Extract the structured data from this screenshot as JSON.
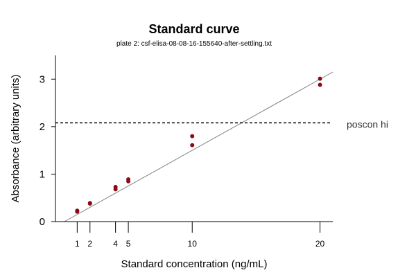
{
  "chart_data": {
    "type": "scatter",
    "title": "Standard curve",
    "subtitle": "plate 2: csf-elisa-08-08-16-155640-after-settling.txt",
    "xlabel": "Standard concentration (ng/mL)",
    "ylabel": "Absorbance (arbitrary units)",
    "xticks": [
      1,
      2,
      4,
      5,
      10,
      20
    ],
    "yticks": [
      0,
      1,
      2,
      3
    ],
    "xlim": [
      -0.7,
      21
    ],
    "ylim": [
      0,
      3.5
    ],
    "grid": false,
    "series": [
      {
        "color": "#8b0a14",
        "points": [
          {
            "x": 1,
            "y": 0.21
          },
          {
            "x": 1,
            "y": 0.23
          },
          {
            "x": 2,
            "y": 0.38
          },
          {
            "x": 2,
            "y": 0.39
          },
          {
            "x": 4,
            "y": 0.68
          },
          {
            "x": 4,
            "y": 0.73
          },
          {
            "x": 5,
            "y": 0.85
          },
          {
            "x": 5,
            "y": 0.89
          },
          {
            "x": 10,
            "y": 1.61
          },
          {
            "x": 10,
            "y": 1.8
          },
          {
            "x": 20,
            "y": 2.88
          },
          {
            "x": 20,
            "y": 3.01
          }
        ]
      }
    ],
    "fit_line": {
      "color": "#808080",
      "x": [
        0,
        21
      ],
      "y": [
        0.0,
        3.15
      ]
    },
    "reference_lines": [
      {
        "label": "poscon hi",
        "y": 2.08,
        "style": "dashed",
        "color": "#000000"
      }
    ]
  }
}
